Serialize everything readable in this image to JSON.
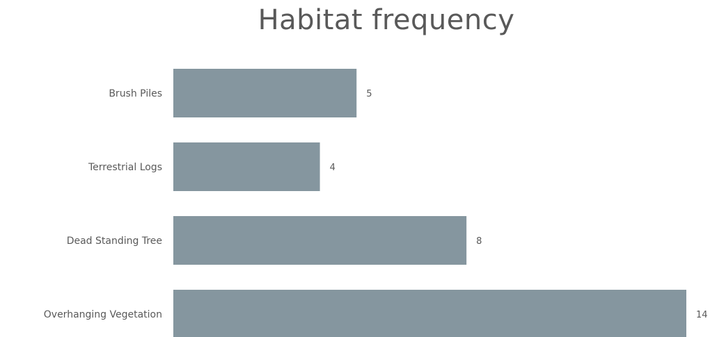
{
  "chart_data": {
    "type": "bar",
    "orientation": "horizontal",
    "title": "Habitat frequency",
    "categories": [
      "Brush Piles",
      "Terrestrial Logs",
      "Dead Standing Tree",
      "Overhanging Vegetation"
    ],
    "values": [
      5,
      4,
      8,
      14
    ],
    "xlim": [
      0,
      14
    ],
    "grid": false,
    "data_labels": true,
    "bar_color": "#85969f"
  }
}
